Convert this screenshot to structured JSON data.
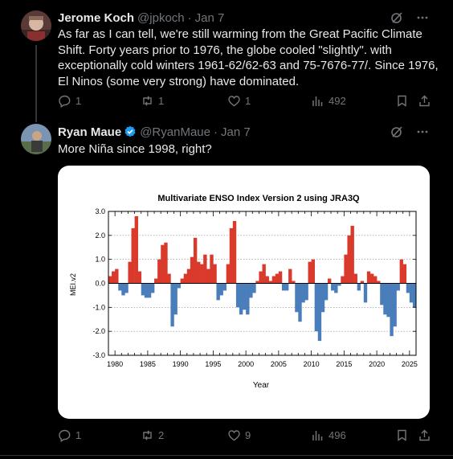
{
  "posts": [
    {
      "name": "Jerome Koch",
      "handle": "@jpkoch",
      "date": "Jan 7",
      "text": "As far as I can tell, we're still warming from the Great Pacific Climate Shift. Forty years prior to 1976, the globe cooled \"slightly\". with exceptionally cold winters 1961-62/62-63 and 75-7676-77/. Since 1976, El Ninos (some very strong) have dominated.",
      "replies": "1",
      "reposts": "1",
      "likes": "1",
      "views": "492"
    },
    {
      "name": "Ryan Maue",
      "handle": "@RyanMaue",
      "date": "Jan 7",
      "text": "More Niña since 1998, right?",
      "replies": "1",
      "reposts": "2",
      "likes": "9",
      "views": "496"
    }
  ],
  "colors": {
    "positive": "#d93a2b",
    "negative": "#4a7ebb",
    "muted": "#71767b",
    "verified": "#1d9bf0"
  },
  "chart_data": {
    "type": "bar",
    "title": "Multivariate ENSO Index Version 2 using JRA3Q",
    "xlabel": "Year",
    "ylabel": "MEI.v2",
    "xlim": [
      1979,
      2026
    ],
    "ylim": [
      -3.0,
      3.0
    ],
    "xticks": [
      "1980",
      "1985",
      "1990",
      "1995",
      "2000",
      "2005",
      "2010",
      "2015",
      "2020",
      "2025"
    ],
    "yticks": [
      "3.0",
      "2.0",
      "1.0",
      "0.0",
      "-1.0",
      "-2.0",
      "-3.0"
    ],
    "grid": true,
    "series": [
      {
        "x": [
          1979.0,
          1979.5,
          1980.0,
          1980.5,
          1981.0,
          1981.5,
          1982.0,
          1982.5,
          1983.0,
          1983.5,
          1984.0,
          1984.5,
          1985.0,
          1985.5,
          1986.0,
          1986.5,
          1987.0,
          1987.5,
          1988.0,
          1988.5,
          1989.0,
          1989.5,
          1990.0,
          1990.5,
          1991.0,
          1991.5,
          1992.0,
          1992.5,
          1993.0,
          1993.5,
          1994.0,
          1994.5,
          1995.0,
          1995.5,
          1996.0,
          1996.5,
          1997.0,
          1997.5,
          1998.0,
          1998.5,
          1999.0,
          1999.5,
          2000.0,
          2000.5,
          2001.0,
          2001.5,
          2002.0,
          2002.5,
          2003.0,
          2003.5,
          2004.0,
          2004.5,
          2005.0,
          2005.5,
          2006.0,
          2006.5,
          2007.0,
          2007.5,
          2008.0,
          2008.5,
          2009.0,
          2009.5,
          2010.0,
          2010.5,
          2011.0,
          2011.5,
          2012.0,
          2012.5,
          2013.0,
          2013.5,
          2014.0,
          2014.5,
          2015.0,
          2015.5,
          2016.0,
          2016.5,
          2017.0,
          2017.5,
          2018.0,
          2018.5,
          2019.0,
          2019.5,
          2020.0,
          2020.5,
          2021.0,
          2021.5,
          2022.0,
          2022.5,
          2023.0,
          2023.5,
          2024.0,
          2024.5,
          2025.0,
          2025.5
        ],
        "values": [
          0.3,
          0.5,
          0.6,
          -0.3,
          -0.5,
          -0.4,
          0.9,
          2.3,
          2.8,
          0.5,
          -0.5,
          -0.6,
          -0.6,
          -0.4,
          0.2,
          1.0,
          1.6,
          1.7,
          0.4,
          -1.8,
          -1.3,
          -0.2,
          0.2,
          0.4,
          0.6,
          1.1,
          1.9,
          0.9,
          0.8,
          1.2,
          0.6,
          1.2,
          0.8,
          -0.7,
          -0.5,
          -0.3,
          0.8,
          2.3,
          2.6,
          -1.0,
          -1.3,
          -1.1,
          -1.3,
          -0.6,
          -0.4,
          0.1,
          0.5,
          0.8,
          0.3,
          0.1,
          0.3,
          0.4,
          0.5,
          -0.3,
          -0.3,
          0.6,
          0.1,
          -1.2,
          -1.6,
          -0.8,
          -0.7,
          0.9,
          1.0,
          -2.0,
          -2.4,
          -1.2,
          -0.7,
          0.2,
          -0.3,
          -0.4,
          -0.1,
          0.3,
          1.2,
          2.0,
          2.4,
          0.4,
          -0.3,
          0.1,
          -0.8,
          0.5,
          0.4,
          0.3,
          0.1,
          -0.9,
          -1.3,
          -1.4,
          -2.2,
          -1.8,
          -0.3,
          1.0,
          0.8,
          -0.4,
          -0.8,
          -1.0
        ]
      }
    ]
  }
}
